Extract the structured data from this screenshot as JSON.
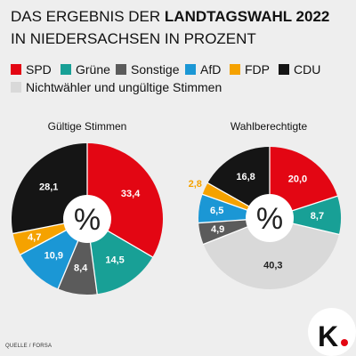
{
  "title": {
    "line1_regular": "DAS ERGEBNIS DER",
    "line1_bold": "LANDTAGSWAHL 2022",
    "line2": "IN NIEDERSACHSEN IN PROZENT"
  },
  "legend": {
    "items": [
      {
        "label": "SPD",
        "color": "#e30613"
      },
      {
        "label": "Grüne",
        "color": "#18a096"
      },
      {
        "label": "Sonstige",
        "color": "#5b5b5b"
      },
      {
        "label": "AfD",
        "color": "#1b97d5"
      },
      {
        "label": "FDP",
        "color": "#f5a200"
      },
      {
        "label": "CDU",
        "color": "#151515"
      },
      {
        "label": "Nichtwähler und ungültige Stimmen",
        "color": "#d9d9d9"
      }
    ]
  },
  "chart_data": [
    {
      "type": "pie",
      "title": "Gültige Stimmen",
      "center_label": "%",
      "categories": [
        "SPD",
        "Grüne",
        "Sonstige",
        "AfD",
        "FDP",
        "CDU"
      ],
      "values": [
        33.4,
        14.5,
        8.4,
        10.9,
        4.7,
        28.1
      ],
      "value_labels": [
        "33,4",
        "14,5",
        "8,4",
        "10,9",
        "4,7",
        "28,1"
      ]
    },
    {
      "type": "pie",
      "title": "Wahlberechtigte",
      "center_label": "%",
      "categories": [
        "SPD",
        "Grüne",
        "Nichtwähler und ungültige Stimmen",
        "Sonstige",
        "AfD",
        "FDP",
        "CDU"
      ],
      "values": [
        20.0,
        8.7,
        40.3,
        4.9,
        6.5,
        2.8,
        16.8
      ],
      "value_labels": [
        "20,0",
        "8,7",
        "40,3",
        "4,9",
        "6,5",
        "2,8",
        "16,8"
      ]
    }
  ],
  "source": "QUELLE / FORSA",
  "logo": {
    "text": "K",
    "dot_color": "#e30613"
  }
}
